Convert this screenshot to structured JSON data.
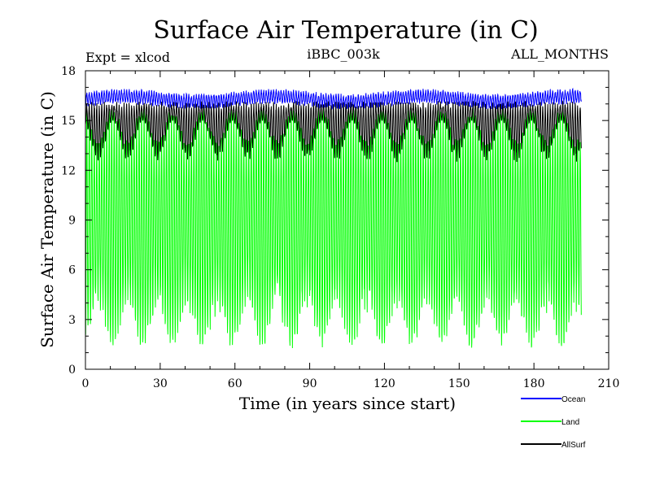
{
  "chart_data": {
    "type": "line",
    "title": "Surface Air Temperature (in C)",
    "experiment_label": "Expt = xlcod",
    "run_label": "iBBC_003k",
    "months_label": "ALL_MONTHS",
    "xlabel": "Time (in years since start)",
    "ylabel": "Surface Air Temperature (in C)",
    "xlim": [
      0,
      210
    ],
    "ylim": [
      0,
      18
    ],
    "x_ticks": [
      0,
      30,
      60,
      90,
      120,
      150,
      180,
      210
    ],
    "y_ticks": [
      0,
      3,
      6,
      9,
      12,
      15,
      18
    ],
    "x_tick_labels": [
      "0",
      "30",
      "60",
      "90",
      "120",
      "150",
      "180",
      "210"
    ],
    "y_tick_labels": [
      "0",
      "3",
      "6",
      "9",
      "12",
      "15",
      "18"
    ],
    "data_x_end": 199,
    "series": [
      {
        "name": "Land",
        "color": "#00ff00",
        "monthly_range": [
          0.4,
          16.0
        ],
        "annual_mean": 8.0,
        "multidecadal_period_years": 12
      },
      {
        "name": "AllSurf",
        "color": "#000000",
        "monthly_range": [
          11.8,
          16.2
        ],
        "annual_mean": 15.3,
        "multidecadal_period_years": 12
      },
      {
        "name": "Ocean",
        "color": "#0000ff",
        "monthly_range": [
          15.7,
          16.9
        ],
        "annual_mean": 16.3,
        "multidecadal_period_years": 12
      }
    ],
    "legend": [
      "Ocean",
      "Land",
      "AllSurf"
    ],
    "legend_position": "below-right"
  }
}
